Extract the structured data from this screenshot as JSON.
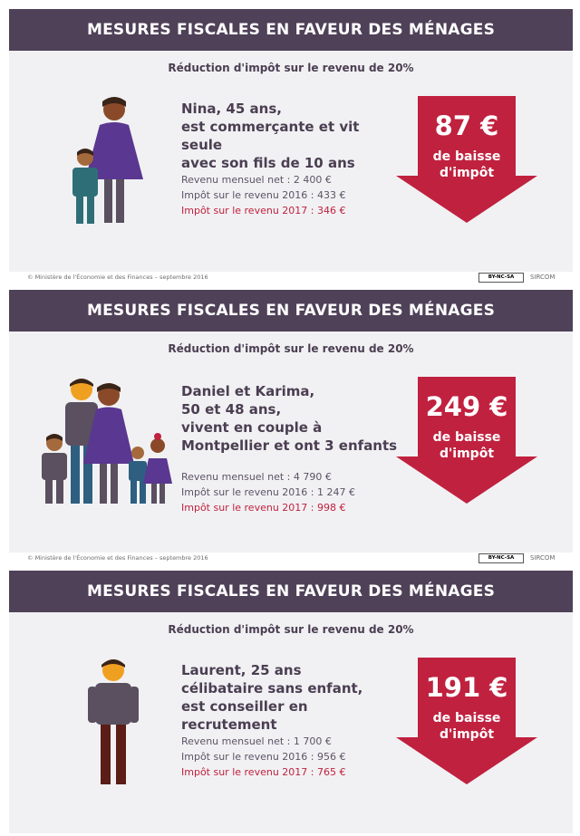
{
  "colors": {
    "header_bg": "#4f4158",
    "card_bg": "#f1f1f3",
    "text": "#4b3e52",
    "accent_red": "#c0213f"
  },
  "cards": [
    {
      "header": "MESURES FISCALES EN FAVEUR DES MÉNAGES",
      "subtitle": "Réduction d'impôt sur le revenu de 20%",
      "desc": [
        "Nina, 45 ans,",
        "est commerçante et vit seule",
        "avec son fils de 10 ans"
      ],
      "income": "Revenu mensuel net : 2 400 €",
      "tax2016": "Impôt sur le revenu 2016 : 433 €",
      "tax2017": "Impôt sur le revenu 2017 : 346 €",
      "amount": "87 €",
      "amount_label": [
        "de baisse",
        "d'impôt"
      ],
      "icon": "mother-and-son-icon"
    },
    {
      "header": "MESURES FISCALES EN FAVEUR DES MÉNAGES",
      "subtitle": "Réduction d'impôt sur le revenu de 20%",
      "desc": [
        "Daniel et Karima,",
        "50 et 48 ans,",
        "vivent en couple à",
        "Montpellier et ont 3 enfants"
      ],
      "income": "Revenu mensuel net : 4 790 €",
      "tax2016": "Impôt sur le revenu 2016 : 1 247 €",
      "tax2017": "Impôt sur le revenu 2017 : 998 €",
      "amount": "249 €",
      "amount_label": [
        "de baisse",
        "d'impôt"
      ],
      "icon": "family-icon"
    },
    {
      "header": "MESURES FISCALES EN FAVEUR DES MÉNAGES",
      "subtitle": "Réduction d'impôt sur le revenu de 20%",
      "desc": [
        "Laurent, 25 ans",
        "célibataire sans enfant,",
        "est conseiller en recrutement"
      ],
      "income": "Revenu mensuel net : 1 700 €",
      "tax2016": "Impôt sur le revenu 2016 : 956 €",
      "tax2017": "Impôt sur le revenu 2017 : 765 €",
      "amount": "191 €",
      "amount_label": [
        "de baisse",
        "d'impôt"
      ],
      "icon": "single-man-icon"
    }
  ],
  "footer": {
    "copyright": "© Ministère de l'Économie et des Finances – septembre 2016",
    "license": "BY-NC-SA",
    "org": "SIRCOM"
  }
}
